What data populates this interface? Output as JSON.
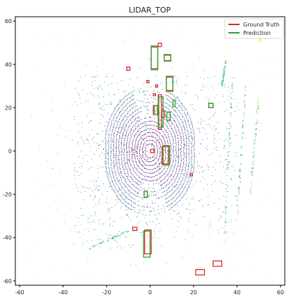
{
  "chart_data": {
    "type": "scatter",
    "title": "LIDAR_TOP",
    "xlim": [
      -62,
      62
    ],
    "ylim": [
      -62,
      62
    ],
    "xticks": [
      -60,
      -40,
      -20,
      0,
      20,
      40,
      60
    ],
    "yticks": [
      60,
      40,
      20,
      0,
      -20,
      -40,
      -60
    ],
    "legend": {
      "placement": "top-right",
      "entries": [
        {
          "name": "Ground Truth",
          "color": "#d62728"
        },
        {
          "name": "Prediction",
          "color": "#2ca02c"
        }
      ]
    },
    "series": [
      {
        "name": "Ground Truth",
        "color": "#d62728",
        "boxes": [
          {
            "cx": 2,
            "cy": 43,
            "w": 3,
            "h": 10
          },
          {
            "cx": 9,
            "cy": 31,
            "w": 3,
            "h": 7
          },
          {
            "cx": 8,
            "cy": 43,
            "w": 3,
            "h": 3
          },
          {
            "cx": 4.5,
            "cy": 49,
            "w": 1.5,
            "h": 1.5
          },
          {
            "cx": 4.5,
            "cy": 18,
            "w": 1.5,
            "h": 16
          },
          {
            "cx": 2.5,
            "cy": 19,
            "w": 2,
            "h": 4
          },
          {
            "cx": 7,
            "cy": -2,
            "w": 3,
            "h": 8
          },
          {
            "cx": 6,
            "cy": 17,
            "w": 1.5,
            "h": 3
          },
          {
            "cx": -10,
            "cy": 38,
            "w": 1.5,
            "h": 1.5
          },
          {
            "cx": -1,
            "cy": 32,
            "w": 1,
            "h": 1
          },
          {
            "cx": 3,
            "cy": 30,
            "w": 1,
            "h": 1
          },
          {
            "cx": 2,
            "cy": 26,
            "w": 1,
            "h": 1
          },
          {
            "cx": 28,
            "cy": 21,
            "w": 2,
            "h": 2
          },
          {
            "cx": -7,
            "cy": -36,
            "w": 2,
            "h": 1.5
          },
          {
            "cx": -1,
            "cy": -42,
            "w": 3,
            "h": 11
          },
          {
            "cx": 23,
            "cy": -56,
            "w": 4,
            "h": 2.5
          },
          {
            "cx": 31,
            "cy": -52,
            "w": 4,
            "h": 2.5
          },
          {
            "cx": 19,
            "cy": -11,
            "w": 1,
            "h": 1
          },
          {
            "cx": -2,
            "cy": -20,
            "w": 1.5,
            "h": 3
          },
          {
            "cx": 1,
            "cy": 0,
            "w": 1.5,
            "h": 1.5
          }
        ]
      },
      {
        "name": "Prediction",
        "color": "#2ca02c",
        "boxes": [
          {
            "cx": 2,
            "cy": 43,
            "w": 3,
            "h": 11
          },
          {
            "cx": 9,
            "cy": 31,
            "w": 3,
            "h": 6
          },
          {
            "cx": 8,
            "cy": 43,
            "w": 3,
            "h": 2.5
          },
          {
            "cx": 5,
            "cy": 18,
            "w": 2,
            "h": 14
          },
          {
            "cx": 3,
            "cy": 19,
            "w": 2,
            "h": 4
          },
          {
            "cx": 7.5,
            "cy": -2,
            "w": 3,
            "h": 9
          },
          {
            "cx": 8.5,
            "cy": 16,
            "w": 1.5,
            "h": 4
          },
          {
            "cx": 11,
            "cy": 22,
            "w": 1,
            "h": 3
          },
          {
            "cx": 28,
            "cy": 21,
            "w": 2,
            "h": 2
          },
          {
            "cx": -1.5,
            "cy": -43,
            "w": 3,
            "h": 12
          },
          {
            "cx": -2,
            "cy": -20,
            "w": 1.5,
            "h": 3
          }
        ]
      }
    ]
  }
}
